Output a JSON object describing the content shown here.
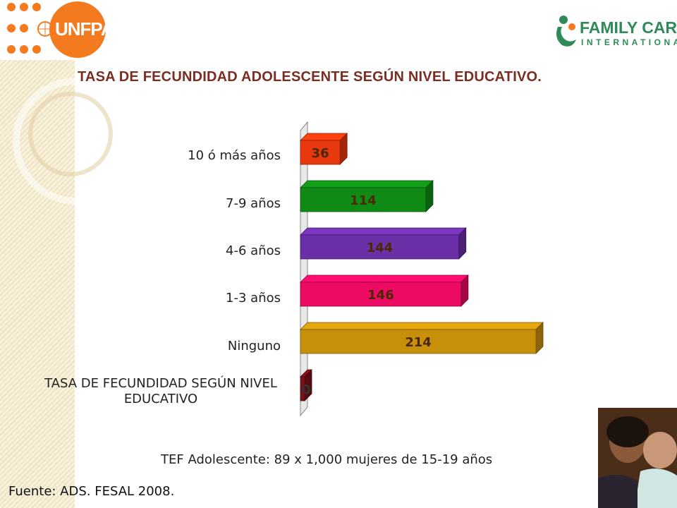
{
  "logos": {
    "left_text": "UNFPA",
    "right_line1": "FAMILY CARE",
    "right_line2": "INTERNATIONAL"
  },
  "title": "TASA DE FECUNDIDAD ADOLESCENTE SEGÚN NIVEL EDUCATIVO.",
  "note": "TEF Adolescente: 89 x 1,000 mujeres de 15-19 años",
  "source": "Fuente: ADS. FESAL 2008.",
  "colors": {
    "title": "#7a2e22",
    "bars": [
      "#e8380d",
      "#0f8a14",
      "#6b2fa8",
      "#ec0a62",
      "#c8900a",
      "#7a1018"
    ],
    "unfpa_orange": "#f47a20",
    "fci_green": "#2e8b57"
  },
  "chart_data": {
    "type": "bar",
    "orientation": "horizontal",
    "categories": [
      "10 ó más años",
      "7-9 años",
      "4-6 años",
      "1-3 años",
      "Ninguno",
      "TASA DE FECUNDIDAD SEGÚN NIVEL EDUCATIVO"
    ],
    "values": [
      36,
      114,
      144,
      146,
      214,
      0
    ],
    "data_labels": [
      "36",
      "114",
      "144",
      "146",
      "214",
      "0"
    ],
    "xlim": [
      0,
      214
    ],
    "grid": false,
    "legend": "none",
    "style": "3d"
  }
}
